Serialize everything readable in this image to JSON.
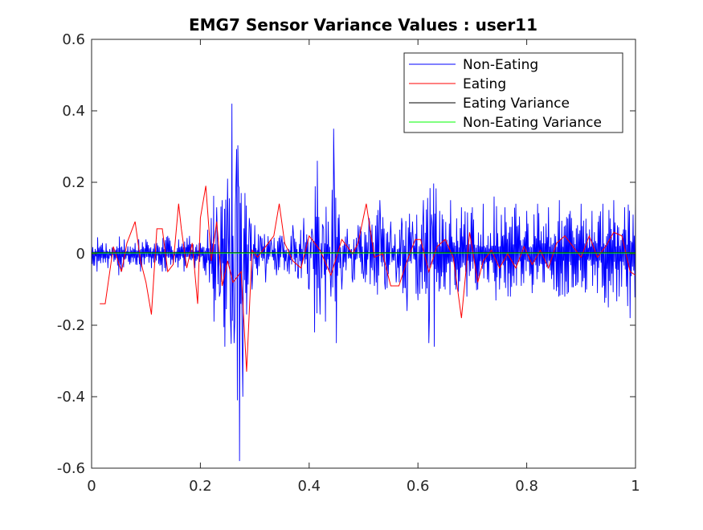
{
  "chart_data": {
    "type": "line",
    "title": "EMG7 Sensor Variance Values : user11",
    "xlabel": "",
    "ylabel": "",
    "xlim": [
      0,
      1
    ],
    "ylim": [
      -0.6,
      0.6
    ],
    "xticks": [
      "0",
      "0.2",
      "0.4",
      "0.6",
      "0.8",
      "1"
    ],
    "yticks": [
      "-0.6",
      "-0.4",
      "-0.2",
      "0",
      "0.2",
      "0.4",
      "0.6"
    ],
    "grid": false,
    "legend_position": "top-right",
    "colors": {
      "non_eating": "#0000ff",
      "eating": "#ff0000",
      "eating_variance": "#000000",
      "non_eating_variance": "#00ff00"
    },
    "series": [
      {
        "name": "Non-Eating",
        "color": "#0000ff",
        "style": "dense-noise",
        "x": [
          0.0,
          0.01,
          0.02,
          0.03,
          0.04,
          0.05,
          0.06,
          0.07,
          0.08,
          0.09,
          0.1,
          0.11,
          0.12,
          0.13,
          0.14,
          0.15,
          0.16,
          0.17,
          0.18,
          0.19,
          0.2,
          0.21,
          0.22,
          0.225,
          0.23,
          0.235,
          0.24,
          0.245,
          0.25,
          0.255,
          0.258,
          0.262,
          0.265,
          0.268,
          0.27,
          0.272,
          0.275,
          0.278,
          0.282,
          0.285,
          0.29,
          0.295,
          0.3,
          0.305,
          0.31,
          0.32,
          0.33,
          0.34,
          0.35,
          0.36,
          0.37,
          0.38,
          0.39,
          0.4,
          0.405,
          0.41,
          0.415,
          0.42,
          0.425,
          0.43,
          0.435,
          0.44,
          0.445,
          0.45,
          0.455,
          0.46,
          0.47,
          0.48,
          0.49,
          0.5,
          0.51,
          0.52,
          0.53,
          0.54,
          0.55,
          0.56,
          0.57,
          0.58,
          0.59,
          0.6,
          0.61,
          0.62,
          0.625,
          0.63,
          0.64,
          0.65,
          0.66,
          0.67,
          0.68,
          0.69,
          0.7,
          0.71,
          0.72,
          0.73,
          0.74,
          0.75,
          0.76,
          0.77,
          0.78,
          0.79,
          0.8,
          0.81,
          0.82,
          0.83,
          0.84,
          0.85,
          0.86,
          0.87,
          0.88,
          0.89,
          0.9,
          0.91,
          0.92,
          0.93,
          0.94,
          0.95,
          0.96,
          0.97,
          0.98,
          0.99,
          1.0
        ],
        "y": [
          0.03,
          -0.05,
          0.03,
          -0.04,
          0.02,
          -0.06,
          0.04,
          -0.03,
          0.03,
          -0.05,
          0.04,
          -0.04,
          0.03,
          -0.05,
          0.05,
          -0.03,
          0.04,
          -0.05,
          0.05,
          -0.04,
          0.03,
          -0.06,
          0.1,
          -0.19,
          0.13,
          -0.12,
          0.15,
          -0.26,
          0.21,
          -0.16,
          0.42,
          -0.25,
          0.17,
          -0.41,
          0.19,
          -0.58,
          0.17,
          -0.4,
          0.17,
          -0.17,
          0.1,
          -0.1,
          0.08,
          -0.06,
          0.05,
          -0.08,
          0.04,
          -0.06,
          0.05,
          -0.05,
          0.08,
          -0.07,
          0.1,
          -0.1,
          0.07,
          -0.22,
          0.26,
          -0.17,
          0.08,
          -0.19,
          0.09,
          -0.12,
          0.35,
          -0.25,
          0.11,
          -0.1,
          0.07,
          -0.08,
          0.08,
          -0.07,
          0.1,
          -0.09,
          0.15,
          -0.1,
          0.09,
          -0.08,
          0.1,
          -0.16,
          0.09,
          -0.13,
          0.15,
          -0.25,
          0.11,
          -0.26,
          0.12,
          -0.1,
          0.15,
          -0.1,
          0.13,
          -0.12,
          0.13,
          -0.1,
          0.14,
          -0.08,
          0.16,
          -0.1,
          0.13,
          -0.12,
          0.14,
          -0.09,
          0.12,
          -0.11,
          0.14,
          -0.08,
          0.13,
          -0.1,
          0.15,
          -0.12,
          0.12,
          -0.09,
          0.14,
          -0.1,
          0.12,
          -0.11,
          0.14,
          -0.15,
          0.15,
          -0.12,
          0.13,
          -0.18,
          0.16
        ]
      },
      {
        "name": "Eating",
        "color": "#ff0000",
        "style": "line",
        "x": [
          0.015,
          0.025,
          0.04,
          0.055,
          0.065,
          0.08,
          0.09,
          0.1,
          0.11,
          0.12,
          0.13,
          0.14,
          0.15,
          0.16,
          0.165,
          0.175,
          0.185,
          0.195,
          0.2,
          0.21,
          0.22,
          0.23,
          0.24,
          0.25,
          0.26,
          0.27,
          0.275,
          0.285,
          0.295,
          0.305,
          0.32,
          0.335,
          0.345,
          0.355,
          0.37,
          0.385,
          0.4,
          0.42,
          0.44,
          0.46,
          0.47,
          0.48,
          0.49,
          0.505,
          0.52,
          0.535,
          0.55,
          0.565,
          0.58,
          0.595,
          0.605,
          0.62,
          0.635,
          0.65,
          0.665,
          0.68,
          0.695,
          0.71,
          0.72,
          0.735,
          0.75,
          0.765,
          0.78,
          0.795,
          0.81,
          0.825,
          0.84,
          0.855,
          0.87,
          0.885,
          0.9,
          0.915,
          0.93,
          0.945,
          0.96,
          0.975,
          0.99,
          1.0
        ],
        "y": [
          -0.14,
          -0.14,
          0.02,
          -0.05,
          0.03,
          0.09,
          -0.02,
          -0.08,
          -0.17,
          0.07,
          0.07,
          -0.05,
          -0.03,
          0.14,
          0.07,
          -0.04,
          0.03,
          -0.14,
          0.1,
          0.19,
          -0.02,
          0.09,
          -0.09,
          -0.02,
          -0.08,
          -0.06,
          -0.05,
          -0.33,
          0.01,
          -0.01,
          0.02,
          0.05,
          0.14,
          0.03,
          -0.02,
          -0.04,
          0.05,
          0.01,
          -0.06,
          0.04,
          0.02,
          0.0,
          0.03,
          0.14,
          -0.01,
          0.0,
          -0.09,
          -0.09,
          -0.02,
          0.04,
          0.04,
          -0.05,
          0.02,
          0.04,
          -0.01,
          -0.18,
          0.06,
          -0.08,
          -0.02,
          0.01,
          -0.04,
          0.0,
          -0.04,
          0.02,
          -0.03,
          0.01,
          -0.04,
          0.03,
          0.05,
          0.02,
          -0.01,
          0.05,
          -0.01,
          0.02,
          0.06,
          0.05,
          -0.05,
          -0.06
        ]
      },
      {
        "name": "Eating Variance",
        "color": "#000000",
        "style": "line",
        "x": [
          0,
          1
        ],
        "y": [
          0.003,
          0.003
        ]
      },
      {
        "name": "Non-Eating Variance",
        "color": "#00ff00",
        "style": "line",
        "x": [
          0,
          1
        ],
        "y": [
          0.002,
          0.002
        ]
      }
    ]
  }
}
